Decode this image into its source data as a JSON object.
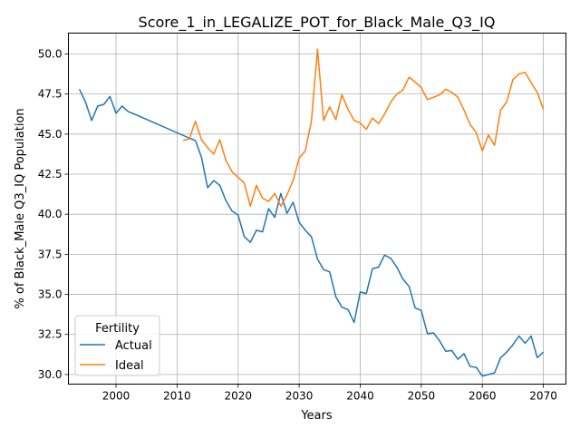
{
  "chart_data": {
    "type": "line",
    "title": "Score_1_in_LEGALIZE_POT_for_Black_Male_Q3_IQ",
    "xlabel": "Years",
    "ylabel": "% of Black_Male Q3_IQ Population",
    "xlim": [
      1992.2,
      2073.7
    ],
    "ylim": [
      29.4,
      51.3
    ],
    "xticks": [
      2000,
      2010,
      2020,
      2030,
      2040,
      2050,
      2060,
      2070
    ],
    "yticks": [
      30.0,
      32.5,
      35.0,
      37.5,
      40.0,
      42.5,
      45.0,
      47.5,
      50.0
    ],
    "ytick_labels": [
      "30.0",
      "32.5",
      "35.0",
      "37.5",
      "40.0",
      "42.5",
      "45.0",
      "47.5",
      "50.0"
    ],
    "grid": true,
    "legend": {
      "title": "Fertility",
      "position": "lower-left"
    },
    "series": [
      {
        "name": "Actual",
        "color": "#1f77b4",
        "points": [
          [
            1994,
            47.8
          ],
          [
            1995,
            47.0
          ],
          [
            1996,
            45.85
          ],
          [
            1997,
            46.75
          ],
          [
            1998,
            46.85
          ],
          [
            1999,
            47.35
          ],
          [
            2000,
            46.3
          ],
          [
            2001,
            46.75
          ],
          [
            2002,
            46.4
          ],
          [
            2003,
            46.25
          ],
          [
            2012,
            44.75
          ],
          [
            2013,
            44.6
          ],
          [
            2014,
            43.55
          ],
          [
            2015,
            41.65
          ],
          [
            2016,
            42.1
          ],
          [
            2017,
            41.8
          ],
          [
            2018,
            40.85
          ],
          [
            2019,
            40.2
          ],
          [
            2020,
            39.95
          ],
          [
            2021,
            38.6
          ],
          [
            2022,
            38.25
          ],
          [
            2023,
            39.0
          ],
          [
            2024,
            38.9
          ],
          [
            2025,
            40.35
          ],
          [
            2026,
            39.8
          ],
          [
            2027,
            41.3
          ],
          [
            2028,
            40.05
          ],
          [
            2029,
            40.75
          ],
          [
            2030,
            39.5
          ],
          [
            2031,
            39.0
          ],
          [
            2032,
            38.6
          ],
          [
            2033,
            37.2
          ],
          [
            2034,
            36.55
          ],
          [
            2035,
            36.4
          ],
          [
            2036,
            34.85
          ],
          [
            2037,
            34.2
          ],
          [
            2038,
            34.05
          ],
          [
            2039,
            33.25
          ],
          [
            2040,
            35.15
          ],
          [
            2041,
            35.05
          ],
          [
            2042,
            36.6
          ],
          [
            2043,
            36.7
          ],
          [
            2044,
            37.45
          ],
          [
            2045,
            37.25
          ],
          [
            2046,
            36.7
          ],
          [
            2047,
            35.95
          ],
          [
            2048,
            35.5
          ],
          [
            2049,
            34.15
          ],
          [
            2050,
            34.0
          ],
          [
            2051,
            32.55
          ],
          [
            2052,
            32.6
          ],
          [
            2053,
            32.1
          ],
          [
            2054,
            31.45
          ],
          [
            2055,
            31.5
          ],
          [
            2056,
            30.95
          ],
          [
            2057,
            31.3
          ],
          [
            2058,
            30.5
          ],
          [
            2059,
            30.45
          ],
          [
            2060,
            29.9
          ],
          [
            2061,
            30.0
          ],
          [
            2062,
            30.1
          ],
          [
            2063,
            31.05
          ],
          [
            2064,
            31.4
          ],
          [
            2065,
            31.85
          ],
          [
            2066,
            32.4
          ],
          [
            2067,
            31.95
          ],
          [
            2068,
            32.4
          ],
          [
            2069,
            31.05
          ],
          [
            2070,
            31.4
          ]
        ]
      },
      {
        "name": "Ideal",
        "color": "#ff7f0e",
        "points": [
          [
            2011,
            44.6
          ],
          [
            2012,
            44.7
          ],
          [
            2013,
            45.8
          ],
          [
            2014,
            44.65
          ],
          [
            2015,
            44.15
          ],
          [
            2016,
            43.75
          ],
          [
            2017,
            44.65
          ],
          [
            2018,
            43.35
          ],
          [
            2019,
            42.65
          ],
          [
            2020,
            42.3
          ],
          [
            2021,
            41.95
          ],
          [
            2022,
            40.5
          ],
          [
            2023,
            41.8
          ],
          [
            2024,
            41.0
          ],
          [
            2025,
            40.8
          ],
          [
            2026,
            41.3
          ],
          [
            2027,
            40.5
          ],
          [
            2028,
            41.2
          ],
          [
            2029,
            42.1
          ],
          [
            2030,
            43.5
          ],
          [
            2031,
            43.95
          ],
          [
            2032,
            45.8
          ],
          [
            2033,
            50.3
          ],
          [
            2034,
            45.85
          ],
          [
            2035,
            46.7
          ],
          [
            2036,
            45.9
          ],
          [
            2037,
            47.45
          ],
          [
            2038,
            46.55
          ],
          [
            2039,
            45.85
          ],
          [
            2040,
            45.7
          ],
          [
            2041,
            45.3
          ],
          [
            2042,
            46.0
          ],
          [
            2043,
            45.65
          ],
          [
            2044,
            46.25
          ],
          [
            2045,
            47.0
          ],
          [
            2046,
            47.5
          ],
          [
            2047,
            47.75
          ],
          [
            2048,
            48.55
          ],
          [
            2049,
            48.25
          ],
          [
            2050,
            47.9
          ],
          [
            2051,
            47.15
          ],
          [
            2052,
            47.3
          ],
          [
            2053,
            47.45
          ],
          [
            2054,
            47.8
          ],
          [
            2055,
            47.6
          ],
          [
            2056,
            47.3
          ],
          [
            2057,
            46.5
          ],
          [
            2058,
            45.6
          ],
          [
            2059,
            45.1
          ],
          [
            2060,
            43.95
          ],
          [
            2061,
            44.95
          ],
          [
            2062,
            44.3
          ],
          [
            2063,
            46.5
          ],
          [
            2064,
            47.0
          ],
          [
            2065,
            48.4
          ],
          [
            2066,
            48.75
          ],
          [
            2067,
            48.85
          ],
          [
            2068,
            48.2
          ],
          [
            2069,
            47.6
          ],
          [
            2070,
            46.55
          ]
        ]
      }
    ]
  }
}
